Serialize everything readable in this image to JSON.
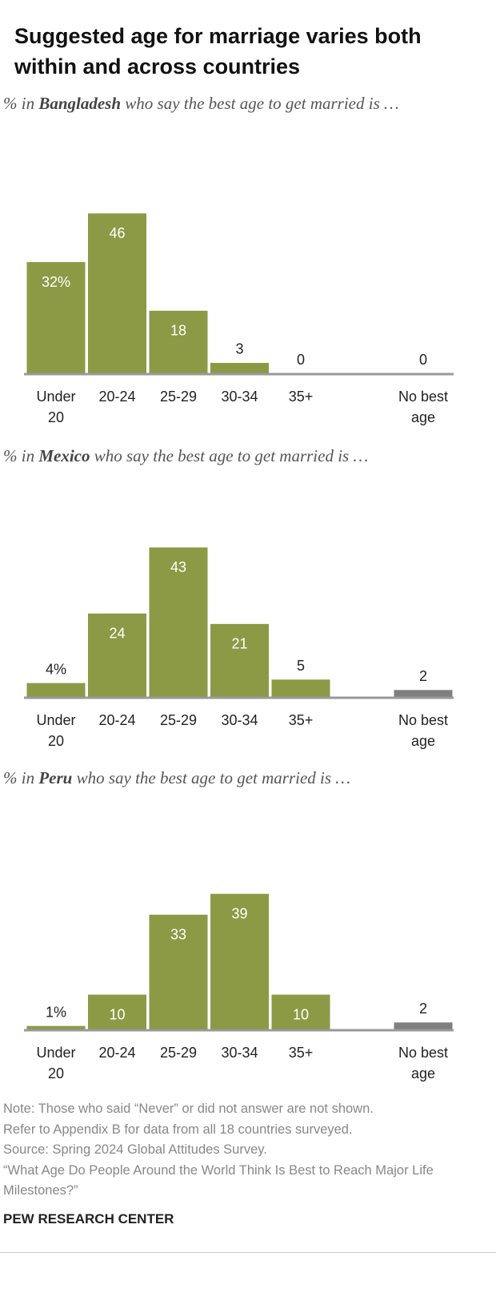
{
  "title": "Suggested age for marriage varies both within and across countries",
  "chart_data": [
    {
      "type": "bar",
      "subtitle": {
        "before": "% in",
        "country": "Bangladesh",
        "after": "who say the best age to get married is …"
      },
      "categories": [
        "Under 20",
        "20-24",
        "25-29",
        "30-34",
        "35+",
        "No best age"
      ],
      "values": [
        32,
        46,
        18,
        3,
        0,
        0
      ],
      "value_labels": [
        "32%",
        "46",
        "18",
        "3",
        "0",
        "0"
      ],
      "colors": [
        "#8c9a45",
        "#8c9a45",
        "#8c9a45",
        "#8c9a45",
        "#8c9a45",
        "#7f7f7f"
      ],
      "ylim": [
        0,
        50
      ]
    },
    {
      "type": "bar",
      "subtitle": {
        "before": "% in",
        "country": "Mexico",
        "after": "who say the best age to get married is …"
      },
      "categories": [
        "Under 20",
        "20-24",
        "25-29",
        "30-34",
        "35+",
        "No best age"
      ],
      "values": [
        4,
        24,
        43,
        21,
        5,
        2
      ],
      "value_labels": [
        "4%",
        "24",
        "43",
        "21",
        "5",
        "2"
      ],
      "colors": [
        "#8c9a45",
        "#8c9a45",
        "#8c9a45",
        "#8c9a45",
        "#8c9a45",
        "#7f7f7f"
      ],
      "ylim": [
        0,
        50
      ]
    },
    {
      "type": "bar",
      "subtitle": {
        "before": "% in",
        "country": "Peru",
        "after": "who say the best age to get married is …"
      },
      "categories": [
        "Under 20",
        "20-24",
        "25-29",
        "30-34",
        "35+",
        "No best age"
      ],
      "values": [
        1,
        10,
        33,
        39,
        10,
        2
      ],
      "value_labels": [
        "1%",
        "10",
        "33",
        "39",
        "10",
        "2"
      ],
      "colors": [
        "#8c9a45",
        "#8c9a45",
        "#8c9a45",
        "#8c9a45",
        "#8c9a45",
        "#7f7f7f"
      ],
      "ylim": [
        0,
        50
      ]
    }
  ],
  "notes": [
    "Note: Those who said “Never” or did not answer are not shown.",
    "Refer to Appendix B for data from all 18 countries surveyed.",
    "Source: Spring 2024 Global Attitudes Survey.",
    "“What Age Do People Around the World Think Is Best to Reach Major Life Milestones?”"
  ],
  "brand": "PEW RESEARCH CENTER"
}
